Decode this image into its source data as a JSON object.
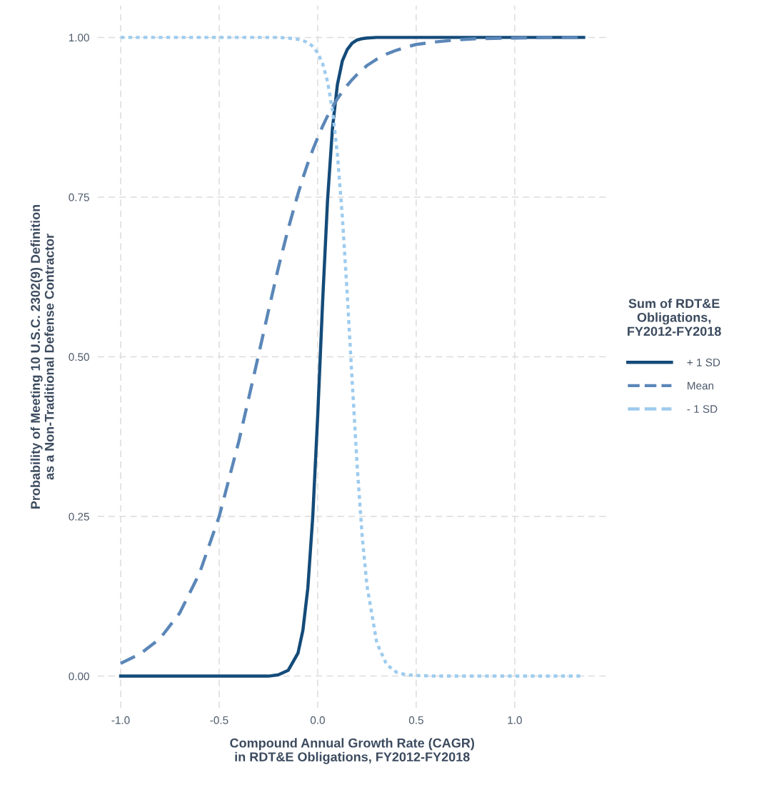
{
  "chart_data": {
    "type": "line",
    "xlabel": "Compound Annual Growth Rate (CAGR)\nin RDT&E Obligations, FY2012-FY2018",
    "ylabel": "Probability of Meeting 10 U.S.C. 2302(9) Definition\nas a Non-Traditional Defense Contractor",
    "legend_title": "Sum of RDT&E\nObligations,\nFY2012-FY2018",
    "x": [
      -1.0,
      -0.9,
      -0.8,
      -0.7,
      -0.6,
      -0.5,
      -0.4,
      -0.3,
      -0.25,
      -0.2,
      -0.15,
      -0.1,
      -0.075,
      -0.05,
      -0.025,
      0,
      0.025,
      0.05,
      0.075,
      0.1,
      0.125,
      0.15,
      0.175,
      0.2,
      0.225,
      0.25,
      0.3,
      0.35,
      0.4,
      0.45,
      0.5,
      0.6,
      0.7,
      0.8,
      1.0,
      1.2,
      1.35
    ],
    "series": [
      {
        "name": "+ 1 SD",
        "color": "#144b79",
        "line_style": "solid",
        "values": [
          0,
          0,
          0,
          0,
          0,
          0,
          0,
          0,
          0,
          0.002,
          0.009,
          0.036,
          0.072,
          0.138,
          0.25,
          0.407,
          0.586,
          0.745,
          0.858,
          0.926,
          0.963,
          0.981,
          0.991,
          0.996,
          0.998,
          0.999,
          1,
          1,
          1,
          1,
          1,
          1,
          1,
          1,
          1,
          1,
          1
        ]
      },
      {
        "name": "Mean",
        "color": "#5b87b8",
        "line_style": "dashed",
        "values": [
          0.02,
          0.035,
          0.059,
          0.099,
          0.161,
          0.25,
          0.368,
          0.503,
          0.572,
          0.639,
          0.7,
          0.755,
          0.78,
          0.803,
          0.824,
          0.843,
          0.861,
          0.877,
          0.891,
          0.904,
          0.915,
          0.925,
          0.934,
          0.942,
          0.949,
          0.956,
          0.966,
          0.974,
          0.98,
          0.985,
          0.989,
          0.993,
          0.996,
          0.998,
          0.999,
          1,
          1
        ]
      },
      {
        "name": "- 1 SD",
        "color": "#9dcbee",
        "line_style": "dotted",
        "values": [
          1,
          1,
          1,
          1,
          1,
          1,
          1,
          1,
          1,
          1,
          0.999,
          0.997,
          0.995,
          0.992,
          0.986,
          0.976,
          0.959,
          0.931,
          0.886,
          0.817,
          0.72,
          0.598,
          0.462,
          0.331,
          0.222,
          0.142,
          0.052,
          0.018,
          0.006,
          0.002,
          0.001,
          0,
          0,
          0,
          0,
          0,
          0
        ]
      }
    ],
    "xlim": [
      -1.1175,
      1.4675
    ],
    "ylim": [
      -0.05,
      1.05
    ],
    "xticks": [
      {
        "value": -1.0,
        "label": "-1.0"
      },
      {
        "value": -0.5,
        "label": "-0.5"
      },
      {
        "value": 0,
        "label": "0.0"
      },
      {
        "value": 0.5,
        "label": "0.5"
      },
      {
        "value": 1.0,
        "label": "1.0"
      }
    ],
    "yticks": [
      {
        "value": 0,
        "label": "0.00"
      },
      {
        "value": 0.25,
        "label": "0.25"
      },
      {
        "value": 0.5,
        "label": "0.50"
      },
      {
        "value": 0.75,
        "label": "0.75"
      },
      {
        "value": 1.0,
        "label": "1.00"
      }
    ],
    "grid": true,
    "legend": "right"
  }
}
